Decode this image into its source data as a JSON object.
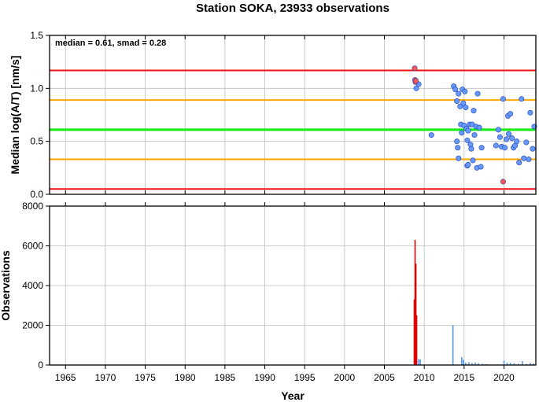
{
  "chart_data": [
    {
      "type": "scatter",
      "title": "Station SOKA, 23933 observations",
      "annotation": "median = 0.61, smad = 0.28",
      "ylabel": "Median log(A/T) [nm/s]",
      "xlim": [
        1963,
        2024
      ],
      "ylim": [
        0,
        1.5
      ],
      "y_ticks": [
        "0.0",
        "0.5",
        "1.0",
        "1.5"
      ],
      "grid": true,
      "colors": {
        "red_line": "#ee1111",
        "orange_line": "#ffa500",
        "green_line": "#11ee11",
        "blue_point": "#6699ff",
        "red_point": "#ff5555"
      },
      "reference_lines": [
        {
          "y": 1.17,
          "color": "red"
        },
        {
          "y": 0.89,
          "color": "orange"
        },
        {
          "y": 0.61,
          "color": "green"
        },
        {
          "y": 0.33,
          "color": "orange"
        },
        {
          "y": 0.05,
          "color": "red"
        }
      ],
      "series": [
        {
          "color": "blue",
          "points": [
            [
              2009.0,
              1.0
            ],
            [
              2009.3,
              1.04
            ],
            [
              2010.9,
              0.56
            ],
            [
              2013.7,
              1.02
            ],
            [
              2013.9,
              0.99
            ],
            [
              2014.1,
              0.88
            ],
            [
              2014.3,
              0.95
            ],
            [
              2014.5,
              0.83
            ],
            [
              2014.6,
              0.66
            ],
            [
              2014.7,
              0.58
            ],
            [
              2014.8,
              0.99
            ],
            [
              2014.9,
              0.86
            ],
            [
              2015.0,
              0.65
            ],
            [
              2015.1,
              0.97
            ],
            [
              2015.2,
              0.82
            ],
            [
              2015.3,
              0.62
            ],
            [
              2015.4,
              0.51
            ],
            [
              2015.5,
              0.6
            ],
            [
              2015.7,
              0.66
            ],
            [
              2015.8,
              0.47
            ],
            [
              2015.9,
              0.43
            ],
            [
              2016.0,
              0.66
            ],
            [
              2016.2,
              0.79
            ],
            [
              2016.3,
              0.56
            ],
            [
              2016.5,
              0.64
            ],
            [
              2016.7,
              0.95
            ],
            [
              2016.9,
              0.63
            ],
            [
              2017.2,
              0.44
            ],
            [
              2014.1,
              0.5
            ],
            [
              2014.2,
              0.44
            ],
            [
              2014.3,
              0.34
            ],
            [
              2015.4,
              0.27
            ],
            [
              2015.5,
              0.28
            ],
            [
              2016.1,
              0.32
            ],
            [
              2016.6,
              0.25
            ],
            [
              2017.1,
              0.26
            ],
            [
              2019.0,
              0.46
            ],
            [
              2019.3,
              0.61
            ],
            [
              2019.5,
              0.54
            ],
            [
              2019.7,
              0.45
            ],
            [
              2019.9,
              0.9
            ],
            [
              2020.1,
              0.44
            ],
            [
              2020.3,
              0.52
            ],
            [
              2020.5,
              0.74
            ],
            [
              2020.6,
              0.57
            ],
            [
              2020.8,
              0.76
            ],
            [
              2021.0,
              0.53
            ],
            [
              2021.2,
              0.44
            ],
            [
              2021.4,
              0.46
            ],
            [
              2021.6,
              0.5
            ],
            [
              2021.9,
              0.3
            ],
            [
              2022.2,
              0.9
            ],
            [
              2022.5,
              0.34
            ],
            [
              2022.8,
              0.49
            ],
            [
              2023.1,
              0.33
            ],
            [
              2023.3,
              0.77
            ],
            [
              2023.6,
              0.43
            ],
            [
              2023.8,
              0.64
            ]
          ]
        },
        {
          "color": "red",
          "points": [
            [
              2008.8,
              1.19
            ],
            [
              2008.85,
              1.08
            ],
            [
              2008.9,
              1.06
            ],
            [
              2008.95,
              1.07
            ],
            [
              2019.9,
              0.12
            ]
          ]
        }
      ]
    },
    {
      "type": "bar",
      "xlabel": "Year",
      "ylabel": "Observations",
      "xlim": [
        1963,
        2024
      ],
      "ylim": [
        0,
        8000
      ],
      "y_ticks": [
        "0",
        "2000",
        "4000",
        "6000",
        "8000"
      ],
      "x_ticks": [
        "1965",
        "1970",
        "1975",
        "1980",
        "1985",
        "1990",
        "1995",
        "2000",
        "2005",
        "2010",
        "2015",
        "2020"
      ],
      "grid": true,
      "series": [
        {
          "color": "red",
          "bars": [
            [
              2008.75,
              3300
            ],
            [
              2008.85,
              6300
            ],
            [
              2008.95,
              5100
            ],
            [
              2009.05,
              2500
            ]
          ]
        },
        {
          "color": "blue",
          "bars": [
            [
              2009.3,
              300
            ],
            [
              2009.5,
              280
            ],
            [
              2013.6,
              2000
            ],
            [
              2014.7,
              400
            ],
            [
              2014.9,
              260
            ],
            [
              2015.2,
              120
            ],
            [
              2015.6,
              150
            ],
            [
              2016.0,
              100
            ],
            [
              2016.4,
              130
            ],
            [
              2016.8,
              90
            ],
            [
              2017.3,
              60
            ],
            [
              2017.8,
              40
            ],
            [
              2019.2,
              30
            ],
            [
              2020.0,
              220
            ],
            [
              2020.4,
              120
            ],
            [
              2020.8,
              110
            ],
            [
              2021.3,
              90
            ],
            [
              2021.8,
              70
            ],
            [
              2022.3,
              200
            ],
            [
              2022.8,
              60
            ],
            [
              2023.3,
              110
            ],
            [
              2023.7,
              80
            ]
          ]
        }
      ]
    }
  ]
}
